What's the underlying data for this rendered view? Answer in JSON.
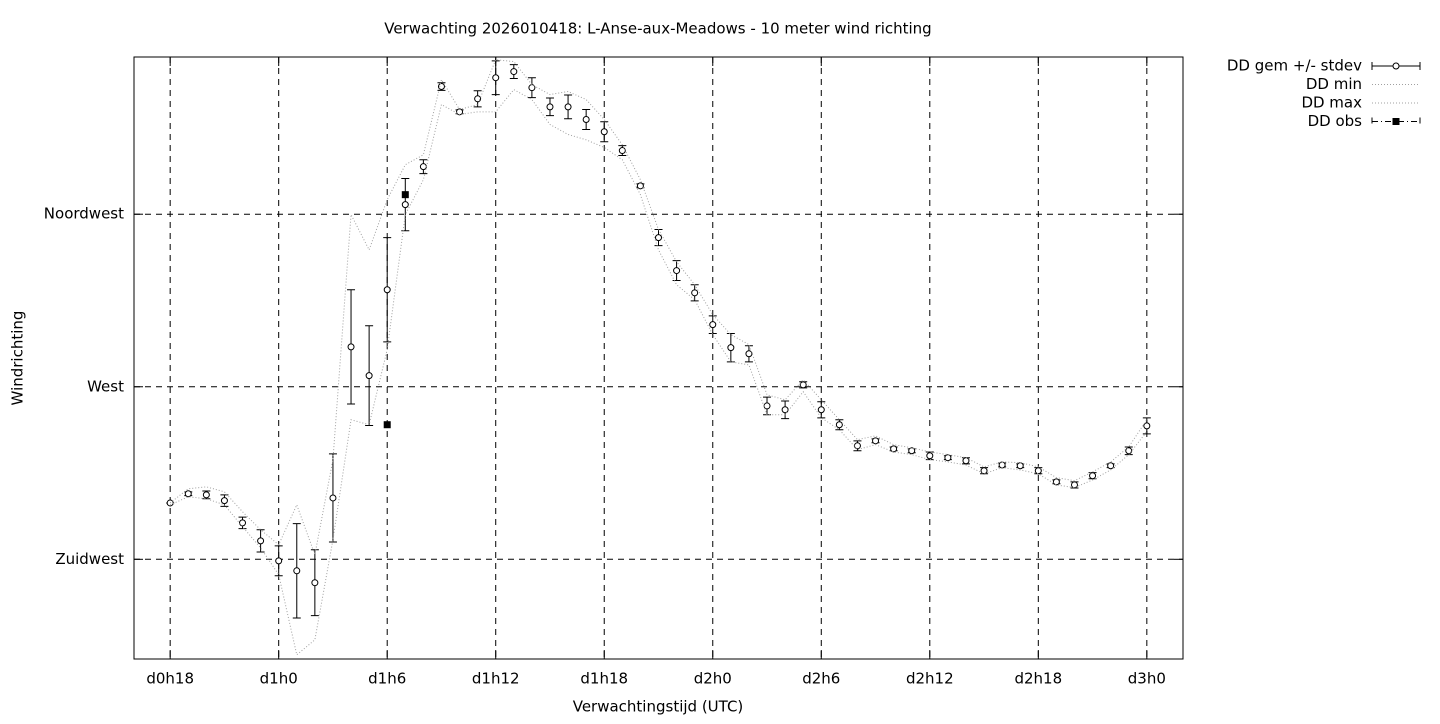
{
  "chart_data": {
    "type": "errorline",
    "title": "Verwachting 2026010418: L-Anse-aux-Meadows - 10 meter wind richting",
    "xlabel": "Verwachtingstijd (UTC)",
    "ylabel": "Windrichting",
    "x": [
      18,
      19,
      20,
      21,
      22,
      23,
      24,
      25,
      26,
      27,
      28,
      29,
      30,
      31,
      32,
      33,
      34,
      35,
      36,
      37,
      38,
      39,
      40,
      41,
      42,
      43,
      44,
      45,
      46,
      47,
      48,
      49,
      50,
      51,
      52,
      53,
      54,
      55,
      56,
      57,
      58,
      59,
      60,
      61,
      62,
      63,
      64,
      65,
      66,
      67,
      68,
      69,
      70,
      71,
      72
    ],
    "series": [
      {
        "name": "DD gem +/- stdev",
        "color": "#000000",
        "values": [
          239.7,
          242.1,
          241.8,
          240.3,
          234.5,
          229.8,
          224.6,
          222.0,
          218.9,
          241.0,
          280.4,
          272.9,
          295.3,
          317.5,
          327.4,
          348.3,
          341.7,
          345.1,
          350.6,
          352.2,
          348.0,
          343.0,
          343.0,
          339.7,
          336.5,
          331.6,
          322.4,
          308.9,
          300.3,
          294.5,
          286.2,
          280.2,
          278.6,
          265.0,
          264.0,
          270.5,
          264.0,
          260.1,
          254.6,
          255.9,
          253.8,
          253.3,
          252.0,
          251.5,
          250.7,
          248.1,
          249.6,
          249.4,
          248.1,
          245.2,
          244.4,
          246.8,
          249.4,
          253.3,
          259.8
        ],
        "errors": [
          0,
          0.5,
          1,
          1.5,
          1.5,
          2.9,
          3.9,
          12.3,
          8.6,
          11.5,
          14.9,
          13,
          13.6,
          6.8,
          1.8,
          1,
          0.5,
          2.1,
          4.4,
          1.8,
          2.6,
          2.3,
          3.1,
          2.6,
          2.6,
          1.3,
          0.5,
          2.1,
          2.6,
          2.1,
          2.3,
          3.7,
          2.1,
          2.3,
          2.3,
          0.8,
          2.1,
          1.3,
          1.3,
          0.5,
          0.5,
          0.5,
          1,
          0.5,
          0.8,
          0.8,
          0.5,
          0.5,
          0.8,
          0.5,
          0.8,
          0.8,
          0.5,
          1,
          2.1
        ]
      },
      {
        "name": "DD min",
        "color": "#a0a0a0",
        "values": [
          239.2,
          241.3,
          240.8,
          239.2,
          233.5,
          228.0,
          221.0,
          200.1,
          204.0,
          230.1,
          261.4,
          260.1,
          279.7,
          314.9,
          324.0,
          343.6,
          341.0,
          341.7,
          341.7,
          347.5,
          344.9,
          338.4,
          335.8,
          334.4,
          332.4,
          329.2,
          320.1,
          305.7,
          296.6,
          292.7,
          283.6,
          276.5,
          275.7,
          262.7,
          262.7,
          268.7,
          261.9,
          258.8,
          253.6,
          254.9,
          253.0,
          252.3,
          251.0,
          250.4,
          249.6,
          247.3,
          248.9,
          248.3,
          247.3,
          244.4,
          243.7,
          245.7,
          248.3,
          252.3,
          258.3
        ]
      },
      {
        "name": "DD max",
        "color": "#a0a0a0",
        "values": [
          239.7,
          243.4,
          243.9,
          242.6,
          237.4,
          232.7,
          228.8,
          239.2,
          226.2,
          251.0,
          314.9,
          305.7,
          318.8,
          327.9,
          330.5,
          350.1,
          342.3,
          343.6,
          355.3,
          354.8,
          348.8,
          346.2,
          347.0,
          344.9,
          339.7,
          333.1,
          324.0,
          311.0,
          302.6,
          296.6,
          288.8,
          283.6,
          281.0,
          267.9,
          266.6,
          271.8,
          266.6,
          261.4,
          256.2,
          257.2,
          254.9,
          254.1,
          253.0,
          252.3,
          251.5,
          249.1,
          250.4,
          250.2,
          249.1,
          246.3,
          245.5,
          247.8,
          250.4,
          254.3,
          261.4
        ]
      },
      {
        "name": "DD obs",
        "color": "#000000",
        "x": [
          30,
          31
        ],
        "values": [
          260.1,
          320.1
        ]
      }
    ],
    "xlim": [
      16,
      74
    ],
    "xticks": [
      {
        "value": 18,
        "label": "d0h18"
      },
      {
        "value": 24,
        "label": "d1h0"
      },
      {
        "value": 30,
        "label": "d1h6"
      },
      {
        "value": 36,
        "label": "d1h12"
      },
      {
        "value": 42,
        "label": "d1h18"
      },
      {
        "value": 48,
        "label": "d2h0"
      },
      {
        "value": 54,
        "label": "d2h6"
      },
      {
        "value": 60,
        "label": "d2h12"
      },
      {
        "value": 66,
        "label": "d2h18"
      },
      {
        "value": 72,
        "label": "d3h0"
      }
    ],
    "ylim": [
      199,
      356
    ],
    "yticks": [
      {
        "value": 225,
        "label": "Zuidwest"
      },
      {
        "value": 270,
        "label": "West"
      },
      {
        "value": 315,
        "label": "Noordwest"
      }
    ],
    "grid": true,
    "legend": "outside-top-right"
  }
}
